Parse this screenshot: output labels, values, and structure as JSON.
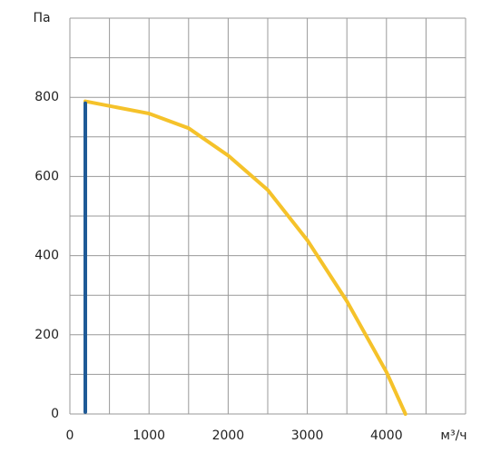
{
  "chart_data": {
    "type": "line",
    "y_unit_label": "Па",
    "x_unit_label": "м³/ч",
    "xlim": [
      0,
      5000
    ],
    "ylim": [
      0,
      1000
    ],
    "xticks": [
      0,
      1000,
      2000,
      3000,
      4000
    ],
    "yticks": [
      0,
      200,
      400,
      600,
      800
    ],
    "xgrid": [
      0,
      500,
      1000,
      1500,
      2000,
      2500,
      3000,
      3500,
      4000,
      4500,
      5000
    ],
    "ygrid": [
      0,
      100,
      200,
      300,
      400,
      500,
      600,
      700,
      800,
      900,
      1000
    ],
    "grid": true,
    "series": [
      {
        "color": "#f5c22a",
        "x": [
          195,
          1000,
          1500,
          2000,
          2500,
          3000,
          3500,
          4000,
          4240
        ],
        "values": [
          790,
          759,
          722,
          653,
          566,
          439,
          285,
          106,
          0
        ]
      },
      {
        "color": "#1f5a96",
        "x": [
          195,
          195
        ],
        "values": [
          5,
          785
        ]
      }
    ]
  }
}
